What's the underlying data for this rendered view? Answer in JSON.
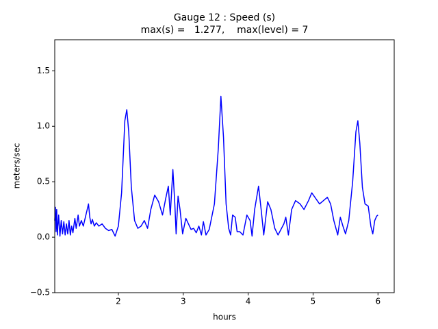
{
  "chart_data": {
    "type": "line",
    "title": "Gauge 12 : Speed (s)",
    "subtitle": "max(s) =   1.277,    max(level) = 7",
    "xlabel": "hours",
    "ylabel": "meters/sec",
    "color": "#0000ff",
    "xlim": [
      1.02,
      6.25
    ],
    "ylim": [
      -0.5,
      1.78
    ],
    "xticks": [
      2,
      3,
      4,
      5,
      6
    ],
    "yticks": [
      {
        "value": -0.5,
        "label": "−0.5"
      },
      {
        "value": 0,
        "label": "0.0"
      },
      0.5,
      {
        "value": 1,
        "label": "1.0"
      },
      1.5
    ],
    "x": [
      1.02,
      1.03,
      1.04,
      1.05,
      1.06,
      1.08,
      1.1,
      1.12,
      1.14,
      1.16,
      1.18,
      1.2,
      1.22,
      1.24,
      1.26,
      1.28,
      1.3,
      1.33,
      1.35,
      1.38,
      1.4,
      1.43,
      1.46,
      1.5,
      1.52,
      1.54,
      1.56,
      1.58,
      1.6,
      1.63,
      1.66,
      1.7,
      1.75,
      1.8,
      1.85,
      1.9,
      1.95,
      2.0,
      2.05,
      2.1,
      2.13,
      2.16,
      2.2,
      2.25,
      2.3,
      2.35,
      2.4,
      2.45,
      2.5,
      2.56,
      2.62,
      2.68,
      2.73,
      2.77,
      2.8,
      2.84,
      2.87,
      2.89,
      2.92,
      2.95,
      2.99,
      3.04,
      3.08,
      3.12,
      3.16,
      3.2,
      3.24,
      3.28,
      3.31,
      3.35,
      3.4,
      3.48,
      3.54,
      3.58,
      3.62,
      3.66,
      3.7,
      3.73,
      3.76,
      3.8,
      3.83,
      3.87,
      3.92,
      3.98,
      4.03,
      4.06,
      4.1,
      4.16,
      4.2,
      4.24,
      4.3,
      4.35,
      4.41,
      4.46,
      4.55,
      4.58,
      4.62,
      4.67,
      4.73,
      4.8,
      4.86,
      4.93,
      4.98,
      5.04,
      5.1,
      5.16,
      5.22,
      5.27,
      5.32,
      5.38,
      5.42,
      5.46,
      5.5,
      5.55,
      5.61,
      5.66,
      5.69,
      5.72,
      5.76,
      5.8,
      5.85,
      5.89,
      5.92,
      5.95,
      5.98,
      6.0
    ],
    "values": [
      0.15,
      0.27,
      0.05,
      0.25,
      0.02,
      0.2,
      0.01,
      0.15,
      0.03,
      0.14,
      0.02,
      0.12,
      0.03,
      0.15,
      0.02,
      0.1,
      0.04,
      0.17,
      0.08,
      0.2,
      0.1,
      0.15,
      0.1,
      0.2,
      0.25,
      0.3,
      0.18,
      0.12,
      0.16,
      0.1,
      0.13,
      0.1,
      0.12,
      0.08,
      0.06,
      0.07,
      0.01,
      0.1,
      0.4,
      1.05,
      1.15,
      0.95,
      0.45,
      0.15,
      0.08,
      0.1,
      0.15,
      0.08,
      0.25,
      0.38,
      0.32,
      0.2,
      0.35,
      0.46,
      0.2,
      0.61,
      0.3,
      0.03,
      0.37,
      0.25,
      0.03,
      0.17,
      0.12,
      0.07,
      0.08,
      0.04,
      0.1,
      0.02,
      0.14,
      0.02,
      0.07,
      0.3,
      0.8,
      1.27,
      0.9,
      0.3,
      0.08,
      0.02,
      0.2,
      0.18,
      0.05,
      0.05,
      0.02,
      0.2,
      0.15,
      0.01,
      0.25,
      0.46,
      0.25,
      0.02,
      0.32,
      0.25,
      0.08,
      0.02,
      0.12,
      0.18,
      0.02,
      0.25,
      0.33,
      0.3,
      0.25,
      0.33,
      0.4,
      0.35,
      0.3,
      0.33,
      0.36,
      0.3,
      0.15,
      0.02,
      0.18,
      0.1,
      0.03,
      0.15,
      0.5,
      0.95,
      1.05,
      0.85,
      0.45,
      0.3,
      0.28,
      0.1,
      0.03,
      0.15,
      0.19,
      0.2
    ]
  }
}
